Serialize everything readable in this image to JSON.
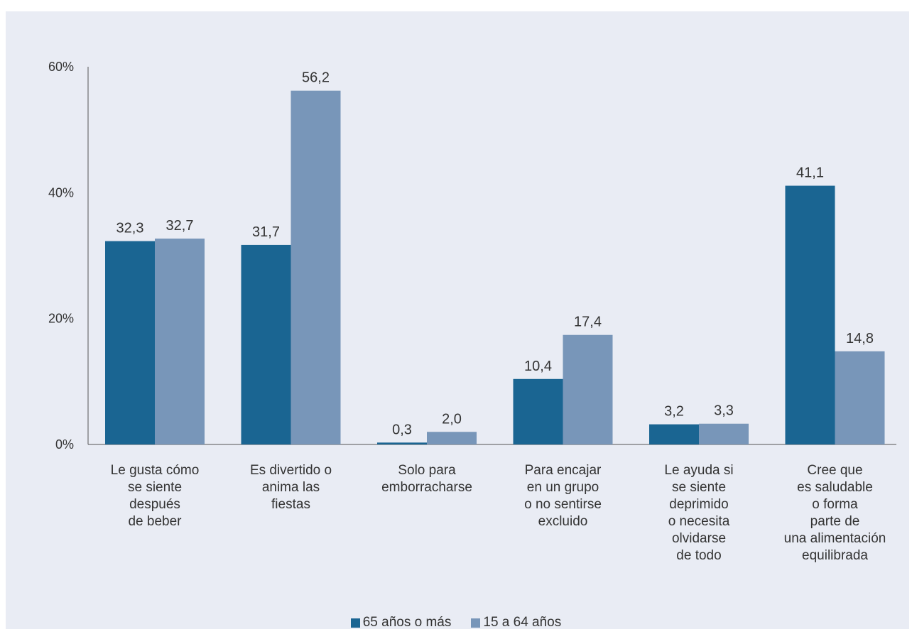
{
  "chart_data": {
    "type": "bar",
    "categories": [
      [
        "Le gusta cómo",
        "se siente",
        "después",
        "de beber"
      ],
      [
        "Es divertido o",
        "anima las",
        "fiestas"
      ],
      [
        "Solo para",
        "emborracharse"
      ],
      [
        "Para encajar",
        "en un grupo",
        "o no sentirse",
        "excluido"
      ],
      [
        "Le ayuda si",
        "se siente",
        "deprimido",
        "o necesita",
        "olvidarse",
        "de todo"
      ],
      [
        "Cree que",
        "es saludable",
        "o forma",
        "parte de",
        "una alimentación",
        "equilibrada"
      ]
    ],
    "series": [
      {
        "name": "65 años o más",
        "color": "#1a6592",
        "values": [
          32.3,
          31.7,
          0.3,
          10.4,
          3.2,
          41.1
        ],
        "labels": [
          "32,3",
          "31,7",
          "0,3",
          "10,4",
          "3,2",
          "41,1"
        ]
      },
      {
        "name": "15 a 64 años",
        "color": "#7896b9",
        "values": [
          32.7,
          56.2,
          2.0,
          17.4,
          3.3,
          14.8
        ],
        "labels": [
          "32,7",
          "56,2",
          "2,0",
          "17,4",
          "3,3",
          "14,8"
        ]
      }
    ],
    "yticks": [
      {
        "value": 0,
        "label": "0%"
      },
      {
        "value": 20,
        "label": "20%"
      },
      {
        "value": 40,
        "label": "40%"
      },
      {
        "value": 60,
        "label": "60%"
      }
    ],
    "ylim": [
      0,
      60
    ],
    "grid": false,
    "legend_position": "bottom"
  }
}
